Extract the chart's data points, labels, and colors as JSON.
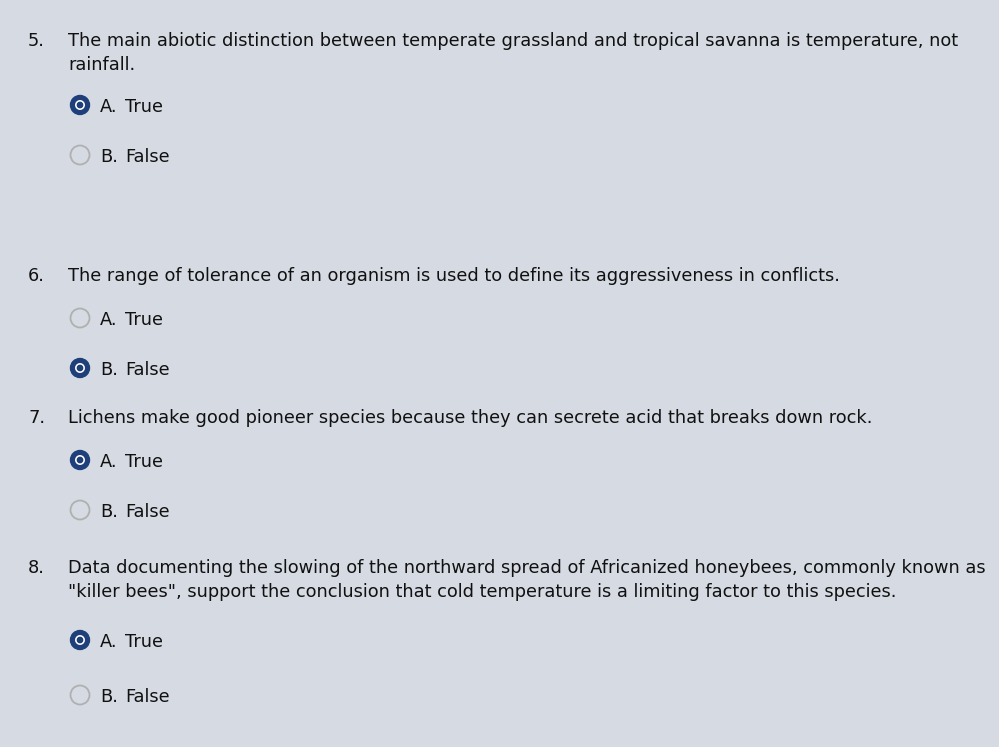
{
  "background_color": "#d5dae3",
  "text_color": "#111111",
  "font_size_question": 12.8,
  "font_size_choice": 12.8,
  "selected_color": "#1e3f7a",
  "unselected_edge_color": "#b0b0b0",
  "questions": [
    {
      "number": "5.",
      "text": "The main abiotic distinction between temperate grassland and tropical savanna is temperature, not\nrainfall.",
      "choices": [
        "A.",
        "B."
      ],
      "choice_labels": [
        "True",
        "False"
      ],
      "selected": 0,
      "two_line": true
    },
    {
      "number": "6.",
      "text": "The range of tolerance of an organism is used to define its aggressiveness in conflicts.",
      "choices": [
        "A.",
        "B."
      ],
      "choice_labels": [
        "True",
        "False"
      ],
      "selected": 1,
      "two_line": false
    },
    {
      "number": "7.",
      "text": "Lichens make good pioneer species because they can secrete acid that breaks down rock.",
      "choices": [
        "A.",
        "B."
      ],
      "choice_labels": [
        "True",
        "False"
      ],
      "selected": 0,
      "two_line": false
    },
    {
      "number": "8.",
      "text": "Data documenting the slowing of the northward spread of Africanized honeybees, commonly known as\n\"killer bees\", support the conclusion that cold temperature is a limiting factor to this species.",
      "choices": [
        "A.",
        "B."
      ],
      "choice_labels": [
        "True",
        "False"
      ],
      "selected": 0,
      "two_line": true
    }
  ],
  "fig_width": 9.99,
  "fig_height": 7.47,
  "dpi": 100
}
